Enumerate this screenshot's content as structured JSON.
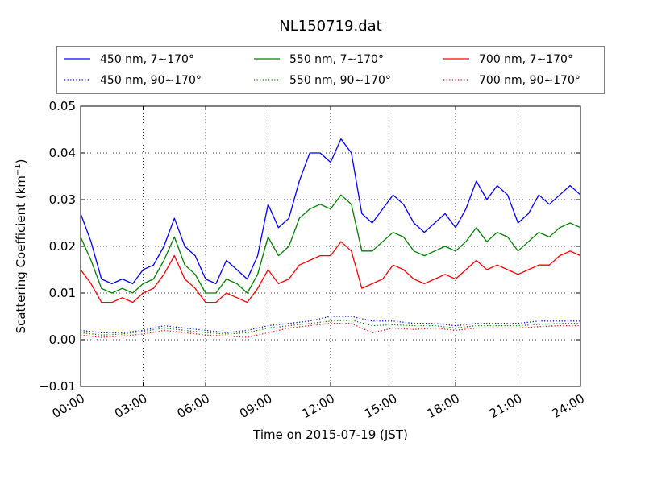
{
  "chart_data": {
    "type": "line",
    "title": "NL150719.dat",
    "xlabel": "Time on 2015-07-19 (JST)",
    "ylabel": "Scattering Coefficient (km",
    "ylabel_exp": "−1",
    "ylabel_close": ")",
    "xlim": [
      0,
      24
    ],
    "ylim": [
      -0.01,
      0.05
    ],
    "grid": true,
    "legend_position": "top",
    "x_ticks": [
      {
        "v": 0,
        "label": "00:00"
      },
      {
        "v": 3,
        "label": "03:00"
      },
      {
        "v": 6,
        "label": "06:00"
      },
      {
        "v": 9,
        "label": "09:00"
      },
      {
        "v": 12,
        "label": "12:00"
      },
      {
        "v": 15,
        "label": "15:00"
      },
      {
        "v": 18,
        "label": "18:00"
      },
      {
        "v": 21,
        "label": "21:00"
      },
      {
        "v": 24,
        "label": "24:00"
      }
    ],
    "y_ticks": [
      {
        "v": -0.01,
        "label": "−0.01"
      },
      {
        "v": 0.0,
        "label": "0.00"
      },
      {
        "v": 0.01,
        "label": "0.01"
      },
      {
        "v": 0.02,
        "label": "0.02"
      },
      {
        "v": 0.03,
        "label": "0.03"
      },
      {
        "v": 0.04,
        "label": "0.04"
      },
      {
        "v": 0.05,
        "label": "0.05"
      }
    ],
    "series": [
      {
        "name": "450 nm, 7∼170°",
        "color": "#0000ff",
        "style": "solid",
        "x": [
          0,
          0.5,
          1,
          1.5,
          2,
          2.5,
          3,
          3.5,
          4,
          4.5,
          5,
          5.5,
          6,
          6.5,
          7,
          7.5,
          8,
          8.5,
          9,
          9.5,
          10,
          10.5,
          11,
          11.5,
          12,
          12.5,
          13,
          13.5,
          14,
          14.5,
          15,
          15.5,
          16,
          16.5,
          17,
          17.5,
          18,
          18.5,
          19,
          19.5,
          20,
          20.5,
          21,
          21.5,
          22,
          22.5,
          23,
          23.5,
          24
        ],
        "y": [
          0.027,
          0.021,
          0.013,
          0.012,
          0.013,
          0.012,
          0.015,
          0.016,
          0.02,
          0.026,
          0.02,
          0.018,
          0.013,
          0.012,
          0.017,
          0.015,
          0.013,
          0.018,
          0.029,
          0.024,
          0.026,
          0.034,
          0.04,
          0.04,
          0.038,
          0.043,
          0.04,
          0.027,
          0.025,
          0.028,
          0.031,
          0.029,
          0.025,
          0.023,
          0.025,
          0.027,
          0.024,
          0.028,
          0.034,
          0.03,
          0.033,
          0.031,
          0.025,
          0.027,
          0.031,
          0.029,
          0.031,
          0.033,
          0.031
        ]
      },
      {
        "name": "550 nm, 7∼170°",
        "color": "#008000",
        "style": "solid",
        "x": [
          0,
          0.5,
          1,
          1.5,
          2,
          2.5,
          3,
          3.5,
          4,
          4.5,
          5,
          5.5,
          6,
          6.5,
          7,
          7.5,
          8,
          8.5,
          9,
          9.5,
          10,
          10.5,
          11,
          11.5,
          12,
          12.5,
          13,
          13.5,
          14,
          14.5,
          15,
          15.5,
          16,
          16.5,
          17,
          17.5,
          18,
          18.5,
          19,
          19.5,
          20,
          20.5,
          21,
          21.5,
          22,
          22.5,
          23,
          23.5,
          24
        ],
        "y": [
          0.022,
          0.017,
          0.011,
          0.01,
          0.011,
          0.01,
          0.012,
          0.013,
          0.017,
          0.022,
          0.016,
          0.014,
          0.01,
          0.01,
          0.013,
          0.012,
          0.01,
          0.014,
          0.022,
          0.018,
          0.02,
          0.026,
          0.028,
          0.029,
          0.028,
          0.031,
          0.029,
          0.019,
          0.019,
          0.021,
          0.023,
          0.022,
          0.019,
          0.018,
          0.019,
          0.02,
          0.019,
          0.021,
          0.024,
          0.021,
          0.023,
          0.022,
          0.019,
          0.021,
          0.023,
          0.022,
          0.024,
          0.025,
          0.024
        ]
      },
      {
        "name": "700 nm, 7∼170°",
        "color": "#ff0000",
        "style": "solid",
        "x": [
          0,
          0.5,
          1,
          1.5,
          2,
          2.5,
          3,
          3.5,
          4,
          4.5,
          5,
          5.5,
          6,
          6.5,
          7,
          7.5,
          8,
          8.5,
          9,
          9.5,
          10,
          10.5,
          11,
          11.5,
          12,
          12.5,
          13,
          13.5,
          14,
          14.5,
          15,
          15.5,
          16,
          16.5,
          17,
          17.5,
          18,
          18.5,
          19,
          19.5,
          20,
          20.5,
          21,
          21.5,
          22,
          22.5,
          23,
          23.5,
          24
        ],
        "y": [
          0.015,
          0.012,
          0.008,
          0.008,
          0.009,
          0.008,
          0.01,
          0.011,
          0.014,
          0.018,
          0.013,
          0.011,
          0.008,
          0.008,
          0.01,
          0.009,
          0.008,
          0.011,
          0.015,
          0.012,
          0.013,
          0.016,
          0.017,
          0.018,
          0.018,
          0.021,
          0.019,
          0.011,
          0.012,
          0.013,
          0.016,
          0.015,
          0.013,
          0.012,
          0.013,
          0.014,
          0.013,
          0.015,
          0.017,
          0.015,
          0.016,
          0.015,
          0.014,
          0.015,
          0.016,
          0.016,
          0.018,
          0.019,
          0.018
        ]
      },
      {
        "name": "450 nm, 90∼170°",
        "color": "#0000ff",
        "style": "dotted",
        "x": [
          0,
          1,
          2,
          3,
          4,
          5,
          6,
          7,
          8,
          9,
          10,
          11,
          12,
          13,
          14,
          15,
          16,
          17,
          18,
          19,
          20,
          21,
          22,
          23,
          24
        ],
        "y": [
          0.002,
          0.0015,
          0.0015,
          0.002,
          0.003,
          0.0025,
          0.002,
          0.0015,
          0.002,
          0.003,
          0.0035,
          0.004,
          0.005,
          0.005,
          0.004,
          0.004,
          0.0035,
          0.0035,
          0.003,
          0.0035,
          0.0035,
          0.0035,
          0.004,
          0.004,
          0.004
        ]
      },
      {
        "name": "550 nm, 90∼170°",
        "color": "#008000",
        "style": "dotted",
        "x": [
          0,
          1,
          2,
          3,
          4,
          5,
          6,
          7,
          8,
          9,
          10,
          11,
          12,
          13,
          14,
          15,
          16,
          17,
          18,
          19,
          20,
          21,
          22,
          23,
          24
        ],
        "y": [
          0.0015,
          0.001,
          0.0012,
          0.0018,
          0.0025,
          0.002,
          0.0015,
          0.0012,
          0.0015,
          0.0025,
          0.003,
          0.0035,
          0.004,
          0.0042,
          0.003,
          0.0032,
          0.003,
          0.003,
          0.0025,
          0.003,
          0.003,
          0.003,
          0.0033,
          0.0035,
          0.0035
        ]
      },
      {
        "name": "700 nm, 90∼170°",
        "color": "#ff0000",
        "style": "dotted",
        "x": [
          0,
          1,
          2,
          3,
          4,
          5,
          6,
          7,
          8,
          9,
          10,
          11,
          12,
          13,
          14,
          15,
          16,
          17,
          18,
          19,
          20,
          21,
          22,
          23,
          24
        ],
        "y": [
          0.001,
          0.0005,
          0.0008,
          0.0012,
          0.002,
          0.0015,
          0.001,
          0.0008,
          0.0005,
          0.0015,
          0.0025,
          0.003,
          0.0035,
          0.0035,
          0.0015,
          0.0025,
          0.0022,
          0.0025,
          0.002,
          0.0025,
          0.0025,
          0.0025,
          0.0028,
          0.003,
          0.003
        ]
      }
    ]
  }
}
